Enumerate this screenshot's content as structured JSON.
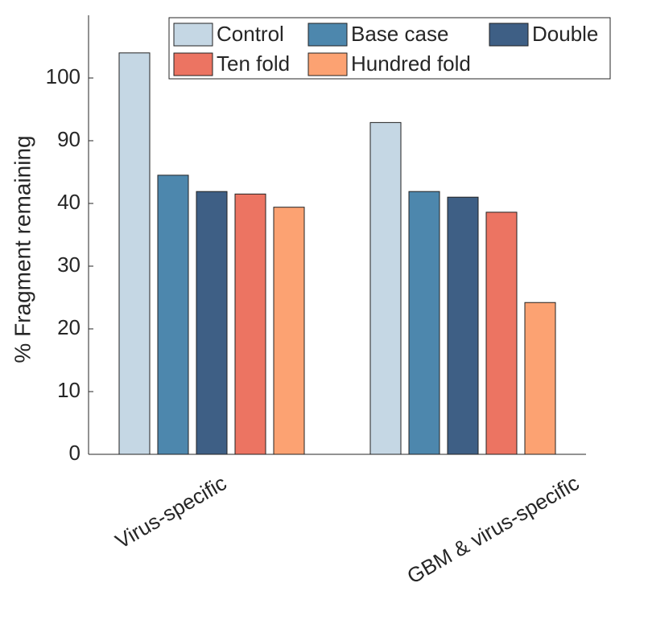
{
  "chart_data": {
    "type": "bar",
    "y_label": "% Fragment remaining",
    "categories": [
      "Virus-specific",
      "GBM & virus-specific"
    ],
    "series": [
      {
        "name": "Control",
        "color": "#c5d7e4",
        "values": [
          64.0,
          52.9
        ]
      },
      {
        "name": "Base case",
        "color": "#4d87ad",
        "values": [
          44.5,
          41.9
        ]
      },
      {
        "name": "Double",
        "color": "#3e5f85",
        "values": [
          41.9,
          41.0
        ]
      },
      {
        "name": "Ten fold",
        "color": "#ec7462",
        "values": [
          41.5,
          38.6
        ]
      },
      {
        "name": "Hundred fold",
        "color": "#fca272",
        "values": [
          39.4,
          24.2
        ]
      }
    ],
    "ylim": [
      0,
      70
    ],
    "yticks": [
      0,
      10,
      20,
      30,
      40,
      {
        "value": 50,
        "label": "90"
      },
      {
        "value": 60,
        "label": "100"
      }
    ],
    "legend": "top-right"
  }
}
